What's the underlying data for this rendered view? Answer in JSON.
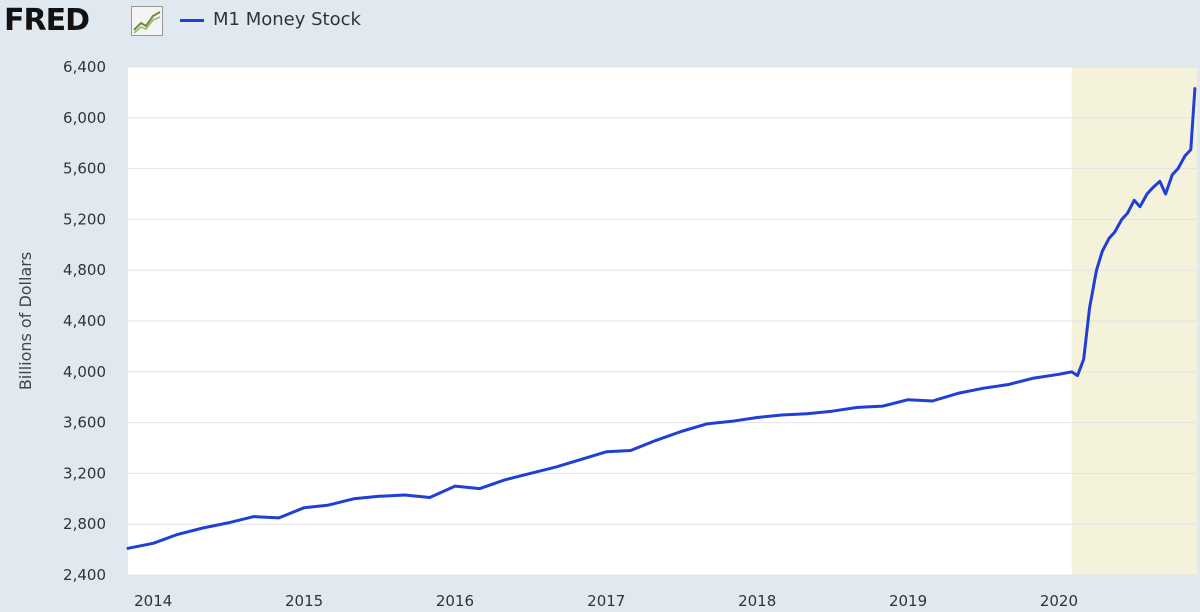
{
  "header": {
    "logo_text": "FRED",
    "legend_label": "M1 Money Stock",
    "series_color": "#1f3fd6"
  },
  "chart_data": {
    "type": "line",
    "title": "",
    "xlabel": "",
    "ylabel": "Billions of Dollars",
    "xlim": [
      "2013-11-01",
      "2020-11-30"
    ],
    "ylim": [
      2400,
      6400
    ],
    "yticks": [
      2400,
      2800,
      3200,
      3600,
      4000,
      4400,
      4800,
      5200,
      5600,
      6000,
      6400
    ],
    "ytick_labels": [
      "2,400",
      "2,800",
      "3,200",
      "3,600",
      "4,000",
      "4,400",
      "4,800",
      "5,200",
      "5,600",
      "6,000",
      "6,400"
    ],
    "xtick_labels": [
      "2014",
      "2015",
      "2016",
      "2017",
      "2018",
      "2019",
      "2020"
    ],
    "grid": true,
    "shaded_region": {
      "label": "recession",
      "start": "2020-02-01",
      "end": "2020-11-30",
      "color": "#f5f2dc"
    },
    "series": [
      {
        "color": "#1f3fd6",
        "x": [
          "2013-11-01",
          "2014-01-01",
          "2014-03-01",
          "2014-05-01",
          "2014-07-01",
          "2014-09-01",
          "2014-11-01",
          "2015-01-01",
          "2015-03-01",
          "2015-05-01",
          "2015-07-01",
          "2015-09-01",
          "2015-11-01",
          "2016-01-01",
          "2016-03-01",
          "2016-05-01",
          "2016-07-01",
          "2016-09-01",
          "2016-11-01",
          "2017-01-01",
          "2017-03-01",
          "2017-05-01",
          "2017-07-01",
          "2017-09-01",
          "2017-11-01",
          "2018-01-01",
          "2018-03-01",
          "2018-05-01",
          "2018-07-01",
          "2018-09-01",
          "2018-11-01",
          "2019-01-01",
          "2019-03-01",
          "2019-05-01",
          "2019-07-01",
          "2019-09-01",
          "2019-11-01",
          "2020-01-01",
          "2020-02-01",
          "2020-02-15",
          "2020-03-01",
          "2020-03-15",
          "2020-04-01",
          "2020-04-15",
          "2020-05-01",
          "2020-05-15",
          "2020-06-01",
          "2020-06-15",
          "2020-07-01",
          "2020-07-15",
          "2020-08-01",
          "2020-08-15",
          "2020-09-01",
          "2020-09-15",
          "2020-10-01",
          "2020-10-15",
          "2020-11-01",
          "2020-11-15",
          "2020-11-25"
        ],
        "y": [
          2610,
          2650,
          2720,
          2770,
          2810,
          2860,
          2850,
          2930,
          2950,
          3000,
          3020,
          3030,
          3010,
          3100,
          3080,
          3150,
          3200,
          3250,
          3310,
          3370,
          3380,
          3460,
          3530,
          3590,
          3610,
          3640,
          3660,
          3670,
          3690,
          3720,
          3730,
          3780,
          3770,
          3830,
          3870,
          3900,
          3950,
          3980,
          4000,
          3970,
          4100,
          4500,
          4800,
          4950,
          5050,
          5100,
          5200,
          5250,
          5350,
          5300,
          5400,
          5450,
          5500,
          5400,
          5550,
          5600,
          5700,
          5750,
          6230
        ]
      }
    ]
  }
}
